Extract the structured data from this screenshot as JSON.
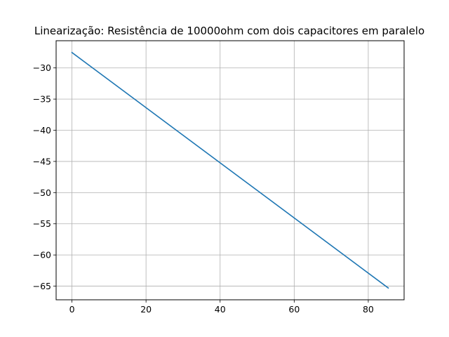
{
  "chart_data": {
    "type": "line",
    "title": "Linearização: Resistência de 10000ohm com dois capacitores em paralelo",
    "xlabel": "",
    "ylabel": "",
    "xlim": [
      -4.27,
      89.67
    ],
    "ylim": [
      -67.19,
      -25.64
    ],
    "x_ticks": [
      0,
      20,
      40,
      60,
      80
    ],
    "y_ticks": [
      -30,
      -35,
      -40,
      -45,
      -50,
      -55,
      -60,
      -65
    ],
    "x_tick_labels": [
      "0",
      "20",
      "40",
      "60",
      "80"
    ],
    "y_tick_labels": [
      "−30",
      "−35",
      "−40",
      "−45",
      "−50",
      "−55",
      "−60",
      "−65"
    ],
    "grid": true,
    "legend": "none",
    "series": [
      {
        "x": [
          0,
          85.4
        ],
        "y": [
          -27.53,
          -65.3
        ],
        "color": "#1f77b4"
      }
    ]
  }
}
